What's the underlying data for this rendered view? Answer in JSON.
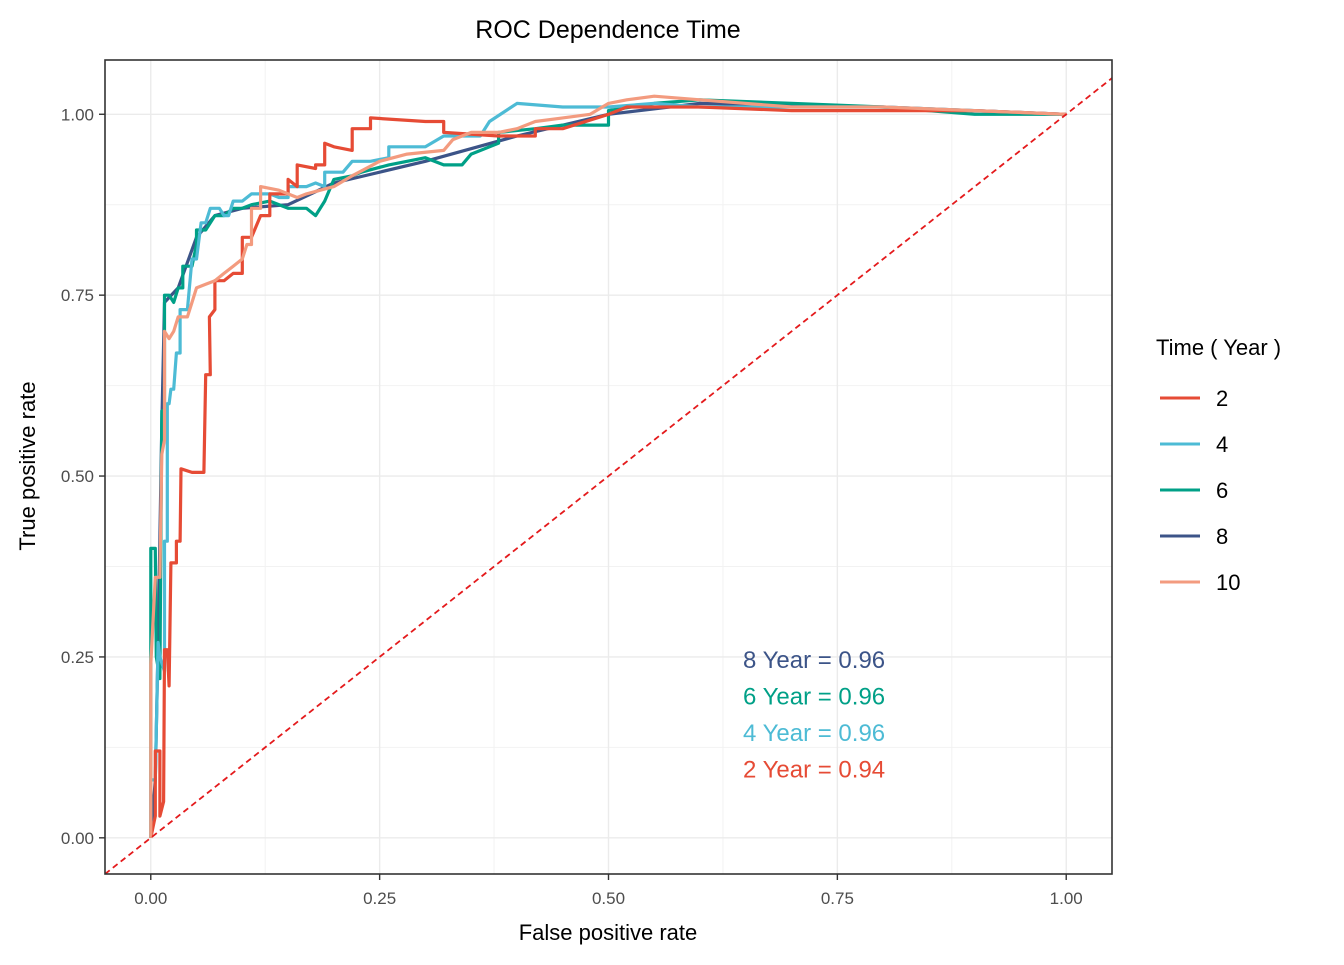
{
  "chart_data": {
    "type": "line",
    "title": "ROC Dependence Time",
    "xlabel": "False positive rate",
    "ylabel": "True positive rate",
    "xlim": [
      -0.05,
      1.05
    ],
    "ylim": [
      -0.05,
      1.075
    ],
    "x_ticks": [
      "0.00",
      "0.25",
      "0.50",
      "0.75",
      "1.00"
    ],
    "y_ticks": [
      "0.00",
      "0.25",
      "0.50",
      "0.75",
      "1.00"
    ],
    "grid": true,
    "legend": {
      "title": "Time ( Year )",
      "position": "right",
      "entries": [
        "2",
        "4",
        "6",
        "8",
        "10"
      ]
    },
    "reference_line": {
      "from": [
        -0.05,
        -0.05
      ],
      "to": [
        1.05,
        1.05
      ],
      "color": "#e41a1c",
      "style": "dashed"
    },
    "series": [
      {
        "name": "2",
        "color": "#e64b35",
        "points": [
          [
            0,
            0
          ],
          [
            0.005,
            0.03
          ],
          [
            0.005,
            0.12
          ],
          [
            0.01,
            0.12
          ],
          [
            0.01,
            0.03
          ],
          [
            0.014,
            0.05
          ],
          [
            0.015,
            0.26
          ],
          [
            0.018,
            0.26
          ],
          [
            0.02,
            0.21
          ],
          [
            0.022,
            0.38
          ],
          [
            0.028,
            0.38
          ],
          [
            0.028,
            0.41
          ],
          [
            0.032,
            0.41
          ],
          [
            0.033,
            0.51
          ],
          [
            0.045,
            0.505
          ],
          [
            0.058,
            0.505
          ],
          [
            0.06,
            0.64
          ],
          [
            0.065,
            0.64
          ],
          [
            0.064,
            0.72
          ],
          [
            0.07,
            0.73
          ],
          [
            0.07,
            0.77
          ],
          [
            0.08,
            0.77
          ],
          [
            0.09,
            0.78
          ],
          [
            0.1,
            0.78
          ],
          [
            0.1,
            0.83
          ],
          [
            0.11,
            0.83
          ],
          [
            0.12,
            0.86
          ],
          [
            0.13,
            0.86
          ],
          [
            0.13,
            0.89
          ],
          [
            0.15,
            0.89
          ],
          [
            0.15,
            0.91
          ],
          [
            0.16,
            0.9
          ],
          [
            0.16,
            0.93
          ],
          [
            0.18,
            0.925
          ],
          [
            0.18,
            0.93
          ],
          [
            0.19,
            0.93
          ],
          [
            0.19,
            0.96
          ],
          [
            0.2,
            0.955
          ],
          [
            0.22,
            0.95
          ],
          [
            0.22,
            0.98
          ],
          [
            0.24,
            0.98
          ],
          [
            0.24,
            0.995
          ],
          [
            0.3,
            0.99
          ],
          [
            0.32,
            0.99
          ],
          [
            0.32,
            0.975
          ],
          [
            0.38,
            0.97
          ],
          [
            0.38,
            0.97
          ],
          [
            0.42,
            0.97
          ],
          [
            0.42,
            0.98
          ],
          [
            0.45,
            0.98
          ],
          [
            0.5,
            1.0
          ],
          [
            0.52,
            1.01
          ],
          [
            0.6,
            1.01
          ],
          [
            0.7,
            1.005
          ],
          [
            0.79,
            1.005
          ],
          [
            0.79,
            1.005
          ],
          [
            0.8,
            1.005
          ],
          [
            0.9,
            1.005
          ],
          [
            1,
            1.0
          ]
        ]
      },
      {
        "name": "4",
        "color": "#4dbbd5",
        "points": [
          [
            0,
            0
          ],
          [
            0,
            0.08
          ],
          [
            0.005,
            0.08
          ],
          [
            0.008,
            0.27
          ],
          [
            0.01,
            0.25
          ],
          [
            0.015,
            0.23
          ],
          [
            0.015,
            0.41
          ],
          [
            0.018,
            0.41
          ],
          [
            0.018,
            0.6
          ],
          [
            0.02,
            0.6
          ],
          [
            0.022,
            0.62
          ],
          [
            0.025,
            0.62
          ],
          [
            0.028,
            0.67
          ],
          [
            0.032,
            0.67
          ],
          [
            0.032,
            0.73
          ],
          [
            0.04,
            0.73
          ],
          [
            0.045,
            0.8
          ],
          [
            0.05,
            0.8
          ],
          [
            0.055,
            0.85
          ],
          [
            0.06,
            0.85
          ],
          [
            0.065,
            0.87
          ],
          [
            0.075,
            0.87
          ],
          [
            0.08,
            0.86
          ],
          [
            0.085,
            0.86
          ],
          [
            0.09,
            0.88
          ],
          [
            0.1,
            0.88
          ],
          [
            0.11,
            0.89
          ],
          [
            0.13,
            0.89
          ],
          [
            0.14,
            0.885
          ],
          [
            0.15,
            0.885
          ],
          [
            0.15,
            0.9
          ],
          [
            0.17,
            0.9
          ],
          [
            0.18,
            0.905
          ],
          [
            0.19,
            0.9
          ],
          [
            0.19,
            0.92
          ],
          [
            0.21,
            0.92
          ],
          [
            0.22,
            0.935
          ],
          [
            0.24,
            0.935
          ],
          [
            0.26,
            0.94
          ],
          [
            0.26,
            0.955
          ],
          [
            0.3,
            0.955
          ],
          [
            0.32,
            0.97
          ],
          [
            0.36,
            0.97
          ],
          [
            0.37,
            0.99
          ],
          [
            0.4,
            1.015
          ],
          [
            0.45,
            1.01
          ],
          [
            0.5,
            1.01
          ],
          [
            0.55,
            1.015
          ],
          [
            0.6,
            1.01
          ],
          [
            0.7,
            1.01
          ],
          [
            0.8,
            1.01
          ],
          [
            0.9,
            1.005
          ],
          [
            1,
            1.0
          ]
        ]
      },
      {
        "name": "6",
        "color": "#00a087",
        "points": [
          [
            0,
            0
          ],
          [
            0,
            0.4
          ],
          [
            0.005,
            0.4
          ],
          [
            0.006,
            0.25
          ],
          [
            0.01,
            0.22
          ],
          [
            0.012,
            0.59
          ],
          [
            0.015,
            0.59
          ],
          [
            0.015,
            0.75
          ],
          [
            0.02,
            0.75
          ],
          [
            0.025,
            0.74
          ],
          [
            0.03,
            0.76
          ],
          [
            0.035,
            0.76
          ],
          [
            0.035,
            0.79
          ],
          [
            0.045,
            0.79
          ],
          [
            0.05,
            0.82
          ],
          [
            0.05,
            0.84
          ],
          [
            0.06,
            0.84
          ],
          [
            0.07,
            0.86
          ],
          [
            0.08,
            0.86
          ],
          [
            0.09,
            0.87
          ],
          [
            0.1,
            0.87
          ],
          [
            0.11,
            0.875
          ],
          [
            0.13,
            0.88
          ],
          [
            0.15,
            0.87
          ],
          [
            0.17,
            0.87
          ],
          [
            0.18,
            0.86
          ],
          [
            0.19,
            0.88
          ],
          [
            0.2,
            0.91
          ],
          [
            0.22,
            0.915
          ],
          [
            0.23,
            0.92
          ],
          [
            0.26,
            0.93
          ],
          [
            0.3,
            0.94
          ],
          [
            0.32,
            0.93
          ],
          [
            0.34,
            0.93
          ],
          [
            0.35,
            0.945
          ],
          [
            0.38,
            0.96
          ],
          [
            0.38,
            0.975
          ],
          [
            0.42,
            0.98
          ],
          [
            0.45,
            0.985
          ],
          [
            0.5,
            0.985
          ],
          [
            0.5,
            1.005
          ],
          [
            0.55,
            1.015
          ],
          [
            0.6,
            1.02
          ],
          [
            0.7,
            1.015
          ],
          [
            0.8,
            1.01
          ],
          [
            0.9,
            1.0
          ],
          [
            1,
            1.0
          ]
        ]
      },
      {
        "name": "8",
        "color": "#3c5488",
        "points": [
          [
            0,
            0
          ],
          [
            0.005,
            0.08
          ],
          [
            0.008,
            0.27
          ],
          [
            0.012,
            0.57
          ],
          [
            0.015,
            0.74
          ],
          [
            0.03,
            0.76
          ],
          [
            0.05,
            0.83
          ],
          [
            0.07,
            0.86
          ],
          [
            0.1,
            0.87
          ],
          [
            0.15,
            0.875
          ],
          [
            0.2,
            0.905
          ],
          [
            0.3,
            0.935
          ],
          [
            0.4,
            0.97
          ],
          [
            0.5,
            1.0
          ],
          [
            0.6,
            1.015
          ],
          [
            0.8,
            1.01
          ],
          [
            1,
            1.0
          ]
        ]
      },
      {
        "name": "10",
        "color": "#f39b7f",
        "points": [
          [
            0,
            0
          ],
          [
            0,
            0.24
          ],
          [
            0.005,
            0.36
          ],
          [
            0.01,
            0.36
          ],
          [
            0.012,
            0.53
          ],
          [
            0.015,
            0.55
          ],
          [
            0.015,
            0.7
          ],
          [
            0.02,
            0.69
          ],
          [
            0.025,
            0.7
          ],
          [
            0.03,
            0.72
          ],
          [
            0.04,
            0.72
          ],
          [
            0.045,
            0.74
          ],
          [
            0.05,
            0.76
          ],
          [
            0.06,
            0.765
          ],
          [
            0.07,
            0.77
          ],
          [
            0.08,
            0.78
          ],
          [
            0.09,
            0.79
          ],
          [
            0.1,
            0.8
          ],
          [
            0.105,
            0.82
          ],
          [
            0.11,
            0.82
          ],
          [
            0.11,
            0.87
          ],
          [
            0.12,
            0.87
          ],
          [
            0.12,
            0.9
          ],
          [
            0.14,
            0.895
          ],
          [
            0.15,
            0.89
          ],
          [
            0.16,
            0.885
          ],
          [
            0.17,
            0.89
          ],
          [
            0.2,
            0.9
          ],
          [
            0.22,
            0.915
          ],
          [
            0.25,
            0.935
          ],
          [
            0.28,
            0.945
          ],
          [
            0.32,
            0.95
          ],
          [
            0.33,
            0.965
          ],
          [
            0.35,
            0.975
          ],
          [
            0.38,
            0.975
          ],
          [
            0.4,
            0.98
          ],
          [
            0.42,
            0.99
          ],
          [
            0.45,
            0.995
          ],
          [
            0.48,
            1.0
          ],
          [
            0.5,
            1.015
          ],
          [
            0.52,
            1.02
          ],
          [
            0.55,
            1.025
          ],
          [
            0.6,
            1.02
          ],
          [
            0.7,
            1.01
          ],
          [
            0.8,
            1.01
          ],
          [
            0.9,
            1.005
          ],
          [
            1,
            1.0
          ]
        ]
      }
    ],
    "annotations": [
      {
        "text": "8 Year  =  0.96",
        "color": "#3c5488"
      },
      {
        "text": "6 Year  =  0.96",
        "color": "#00a087"
      },
      {
        "text": "4 Year  =  0.96",
        "color": "#4dbbd5"
      },
      {
        "text": "2 Year  =  0.94",
        "color": "#e64b35"
      }
    ]
  }
}
